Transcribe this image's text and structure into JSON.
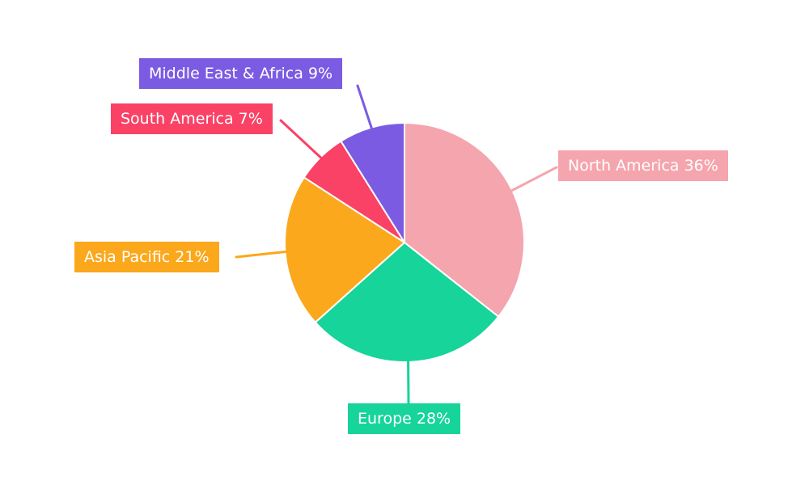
{
  "chart_data": {
    "type": "pie",
    "title": "",
    "labels": [
      "North America",
      "Europe",
      "Asia Pacific",
      "South America",
      "Middle East & Africa"
    ],
    "values": [
      36,
      28,
      21,
      7,
      9
    ],
    "units": "%",
    "label_texts": [
      "North America 36%",
      "Europe 28%",
      "Asia Pacific 21%",
      "South America 7%",
      "Middle East & Africa 9%"
    ],
    "colors": [
      "#F5A5AD",
      "#16D49A",
      "#FBA81C",
      "#F94266",
      "#7B5BE2"
    ],
    "slice_separator_color": "#FFFFFF",
    "background": "#FFFFFF",
    "start_angle": "top",
    "direction": "clockwise",
    "legend_position": "callout-labels"
  }
}
